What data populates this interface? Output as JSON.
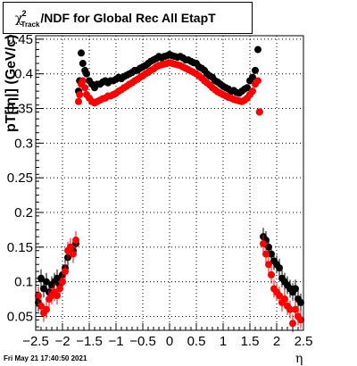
{
  "title": {
    "chi_symbol": "χ",
    "chi_sup": "2",
    "chi_sub": "Track",
    "rest": "/NDF for Global Rec All EtapT"
  },
  "footer_timestamp": "Fri May 21 17:40:50 2021",
  "colors": {
    "black_series": "#000000",
    "red_series": "#ff0000",
    "grid": "#000000"
  },
  "chart_data": {
    "type": "scatter",
    "title": "χ²_Track/NDF for Global Rec All EtapT",
    "xlabel": "η",
    "ylabel": "pT[|η|] (GeV/c)",
    "xlim": [
      -2.5,
      2.5
    ],
    "ylim": [
      0.03,
      0.455
    ],
    "x_ticks": [
      -2.5,
      -2,
      -1.5,
      -1,
      -0.5,
      0,
      0.5,
      1,
      1.5,
      2,
      2.5
    ],
    "x_tick_labels": [
      "−2.5",
      "−2",
      "−1.5",
      "−1",
      "−0.5",
      "0",
      "0.5",
      "1",
      "1.5",
      "2",
      "2.5"
    ],
    "y_ticks": [
      0.05,
      0.1,
      0.15,
      0.2,
      0.25,
      0.3,
      0.35,
      0.4,
      0.45
    ],
    "y_tick_labels": [
      "0.05",
      "0.1",
      "0.15",
      "0.2",
      "0.25",
      "0.3",
      "0.35",
      "0.4",
      "0.45"
    ],
    "grid": true,
    "series": [
      {
        "color": "#000000",
        "points": [
          [
            -2.45,
            0.07
          ],
          [
            -2.4,
            0.105
          ],
          [
            -2.35,
            0.09
          ],
          [
            -2.3,
            0.1
          ],
          [
            -2.25,
            0.085
          ],
          [
            -2.2,
            0.095
          ],
          [
            -2.15,
            0.1
          ],
          [
            -2.1,
            0.105
          ],
          [
            -2.05,
            0.095
          ],
          [
            -2.0,
            0.11
          ],
          [
            -1.95,
            0.12
          ],
          [
            -1.9,
            0.135
          ],
          [
            -1.85,
            0.15
          ],
          [
            -1.8,
            0.145
          ],
          [
            -1.75,
            0.155
          ],
          [
            -1.7,
            0.375
          ],
          [
            -1.68,
            0.39
          ],
          [
            -1.65,
            0.43
          ],
          [
            -1.62,
            0.415
          ],
          [
            -1.58,
            0.405
          ],
          [
            -1.55,
            0.4
          ],
          [
            -1.5,
            0.39
          ],
          [
            -1.45,
            0.385
          ],
          [
            -1.4,
            0.38
          ],
          [
            -1.35,
            0.385
          ],
          [
            -1.3,
            0.385
          ],
          [
            -1.25,
            0.388
          ],
          [
            -1.2,
            0.39
          ],
          [
            -1.15,
            0.387
          ],
          [
            -1.1,
            0.39
          ],
          [
            -1.05,
            0.39
          ],
          [
            -1.0,
            0.392
          ],
          [
            -0.95,
            0.395
          ],
          [
            -0.9,
            0.393
          ],
          [
            -0.85,
            0.396
          ],
          [
            -0.8,
            0.398
          ],
          [
            -0.75,
            0.4
          ],
          [
            -0.7,
            0.402
          ],
          [
            -0.65,
            0.405
          ],
          [
            -0.6,
            0.405
          ],
          [
            -0.55,
            0.408
          ],
          [
            -0.5,
            0.41
          ],
          [
            -0.45,
            0.412
          ],
          [
            -0.4,
            0.415
          ],
          [
            -0.35,
            0.418
          ],
          [
            -0.3,
            0.42
          ],
          [
            -0.25,
            0.422
          ],
          [
            -0.2,
            0.425
          ],
          [
            -0.15,
            0.423
          ],
          [
            -0.1,
            0.425
          ],
          [
            -0.05,
            0.426
          ],
          [
            0.0,
            0.428
          ],
          [
            0.05,
            0.426
          ],
          [
            0.1,
            0.425
          ],
          [
            0.15,
            0.424
          ],
          [
            0.2,
            0.425
          ],
          [
            0.25,
            0.423
          ],
          [
            0.3,
            0.42
          ],
          [
            0.35,
            0.42
          ],
          [
            0.4,
            0.418
          ],
          [
            0.45,
            0.416
          ],
          [
            0.5,
            0.415
          ],
          [
            0.55,
            0.41
          ],
          [
            0.6,
            0.408
          ],
          [
            0.65,
            0.405
          ],
          [
            0.7,
            0.4
          ],
          [
            0.75,
            0.397
          ],
          [
            0.8,
            0.395
          ],
          [
            0.85,
            0.39
          ],
          [
            0.9,
            0.388
          ],
          [
            0.95,
            0.385
          ],
          [
            1.0,
            0.382
          ],
          [
            1.05,
            0.38
          ],
          [
            1.1,
            0.378
          ],
          [
            1.15,
            0.375
          ],
          [
            1.2,
            0.376
          ],
          [
            1.25,
            0.373
          ],
          [
            1.3,
            0.372
          ],
          [
            1.35,
            0.375
          ],
          [
            1.4,
            0.378
          ],
          [
            1.45,
            0.38
          ],
          [
            1.5,
            0.39
          ],
          [
            1.55,
            0.395
          ],
          [
            1.6,
            0.405
          ],
          [
            1.65,
            0.435
          ],
          [
            1.68,
            0.345
          ],
          [
            1.75,
            0.165
          ],
          [
            1.8,
            0.16
          ],
          [
            1.85,
            0.15
          ],
          [
            1.9,
            0.14
          ],
          [
            1.95,
            0.13
          ],
          [
            2.0,
            0.125
          ],
          [
            2.05,
            0.12
          ],
          [
            2.1,
            0.105
          ],
          [
            2.15,
            0.1
          ],
          [
            2.2,
            0.095
          ],
          [
            2.25,
            0.09
          ],
          [
            2.3,
            0.085
          ],
          [
            2.35,
            0.09
          ],
          [
            2.4,
            0.075
          ],
          [
            2.45,
            0.07
          ]
        ]
      },
      {
        "color": "#ff0000",
        "points": [
          [
            -2.45,
            0.08
          ],
          [
            -2.4,
            0.065
          ],
          [
            -2.35,
            0.055
          ],
          [
            -2.3,
            0.06
          ],
          [
            -2.25,
            0.075
          ],
          [
            -2.2,
            0.08
          ],
          [
            -2.15,
            0.085
          ],
          [
            -2.1,
            0.08
          ],
          [
            -2.05,
            0.09
          ],
          [
            -2.0,
            0.1
          ],
          [
            -1.95,
            0.115
          ],
          [
            -1.9,
            0.145
          ],
          [
            -1.85,
            0.15
          ],
          [
            -1.8,
            0.14
          ],
          [
            -1.75,
            0.16
          ],
          [
            -1.7,
            0.36
          ],
          [
            -1.68,
            0.37
          ],
          [
            -1.65,
            0.385
          ],
          [
            -1.62,
            0.39
          ],
          [
            -1.58,
            0.38
          ],
          [
            -1.55,
            0.37
          ],
          [
            -1.5,
            0.365
          ],
          [
            -1.45,
            0.36
          ],
          [
            -1.4,
            0.358
          ],
          [
            -1.35,
            0.36
          ],
          [
            -1.3,
            0.362
          ],
          [
            -1.25,
            0.364
          ],
          [
            -1.2,
            0.365
          ],
          [
            -1.15,
            0.368
          ],
          [
            -1.1,
            0.368
          ],
          [
            -1.05,
            0.37
          ],
          [
            -1.0,
            0.372
          ],
          [
            -0.95,
            0.375
          ],
          [
            -0.9,
            0.377
          ],
          [
            -0.85,
            0.38
          ],
          [
            -0.8,
            0.382
          ],
          [
            -0.75,
            0.385
          ],
          [
            -0.7,
            0.387
          ],
          [
            -0.65,
            0.39
          ],
          [
            -0.6,
            0.392
          ],
          [
            -0.55,
            0.395
          ],
          [
            -0.5,
            0.397
          ],
          [
            -0.45,
            0.4
          ],
          [
            -0.4,
            0.402
          ],
          [
            -0.35,
            0.405
          ],
          [
            -0.3,
            0.407
          ],
          [
            -0.25,
            0.41
          ],
          [
            -0.2,
            0.412
          ],
          [
            -0.15,
            0.413
          ],
          [
            -0.1,
            0.414
          ],
          [
            -0.05,
            0.415
          ],
          [
            0.0,
            0.416
          ],
          [
            0.05,
            0.415
          ],
          [
            0.1,
            0.414
          ],
          [
            0.15,
            0.413
          ],
          [
            0.2,
            0.412
          ],
          [
            0.25,
            0.41
          ],
          [
            0.3,
            0.408
          ],
          [
            0.35,
            0.406
          ],
          [
            0.4,
            0.404
          ],
          [
            0.45,
            0.402
          ],
          [
            0.5,
            0.4
          ],
          [
            0.55,
            0.397
          ],
          [
            0.6,
            0.394
          ],
          [
            0.65,
            0.39
          ],
          [
            0.7,
            0.387
          ],
          [
            0.75,
            0.384
          ],
          [
            0.8,
            0.38
          ],
          [
            0.85,
            0.377
          ],
          [
            0.9,
            0.374
          ],
          [
            0.95,
            0.372
          ],
          [
            1.0,
            0.37
          ],
          [
            1.05,
            0.368
          ],
          [
            1.1,
            0.366
          ],
          [
            1.15,
            0.365
          ],
          [
            1.2,
            0.363
          ],
          [
            1.25,
            0.362
          ],
          [
            1.3,
            0.361
          ],
          [
            1.35,
            0.36
          ],
          [
            1.4,
            0.362
          ],
          [
            1.45,
            0.365
          ],
          [
            1.5,
            0.37
          ],
          [
            1.55,
            0.375
          ],
          [
            1.6,
            0.385
          ],
          [
            1.65,
            0.39
          ],
          [
            1.68,
            0.345
          ],
          [
            1.75,
            0.155
          ],
          [
            1.8,
            0.14
          ],
          [
            1.85,
            0.125
          ],
          [
            1.9,
            0.11
          ],
          [
            1.95,
            0.09
          ],
          [
            2.0,
            0.085
          ],
          [
            2.05,
            0.08
          ],
          [
            2.1,
            0.07
          ],
          [
            2.15,
            0.075
          ],
          [
            2.2,
            0.065
          ],
          [
            2.25,
            0.06
          ],
          [
            2.3,
            0.04
          ],
          [
            2.35,
            0.06
          ],
          [
            2.4,
            0.05
          ],
          [
            2.45,
            0.045
          ]
        ]
      }
    ]
  }
}
